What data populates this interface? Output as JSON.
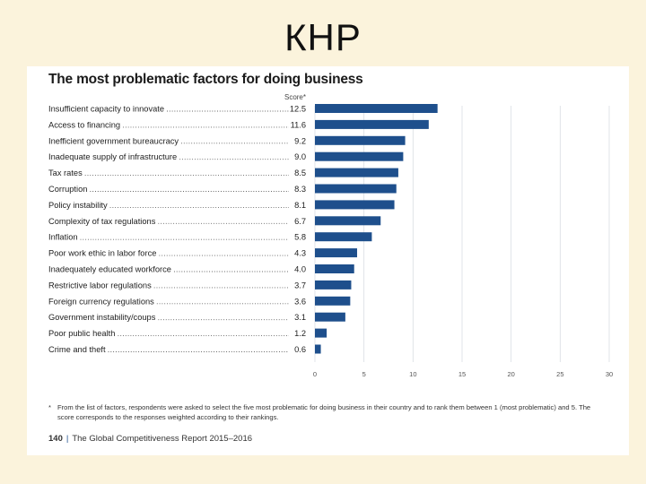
{
  "slide": {
    "title": "КНР"
  },
  "chart_data": {
    "type": "bar",
    "orientation": "horizontal",
    "title": "The most problematic factors for doing business",
    "score_label": "Score*",
    "categories": [
      "Insufficient capacity to innovate",
      "Access to financing",
      "Inefficient government bureaucracy",
      "Inadequate supply of infrastructure",
      "Tax rates",
      "Corruption",
      "Policy instability",
      "Complexity of tax regulations",
      "Inflation",
      "Poor work ethic in labor force",
      "Inadequately educated workforce",
      "Restrictive labor regulations",
      "Foreign currency regulations",
      "Government instability/coups",
      "Poor public health",
      "Crime and theft"
    ],
    "values": [
      12.5,
      11.6,
      9.2,
      9.0,
      8.5,
      8.3,
      8.1,
      6.7,
      5.8,
      4.3,
      4.0,
      3.7,
      3.6,
      3.1,
      1.2,
      0.6
    ],
    "value_labels": [
      "12.5",
      "11.6",
      "9.2",
      "9.0",
      "8.5",
      "8.3",
      "8.1",
      "6.7",
      "5.8",
      "4.3",
      "4.0",
      "3.7",
      "3.6",
      "3.1",
      "1.2",
      "0.6"
    ],
    "xlim": [
      0,
      30
    ],
    "xticks": [
      0,
      5,
      10,
      15,
      20,
      25,
      30
    ],
    "bar_color": "#1e4f8c",
    "grid_color": "#d9dde3"
  },
  "footnote": {
    "mark": "*",
    "text": "From the list of factors, respondents were asked to select the five most problematic for doing business in their country and to rank them between 1 (most problematic) and 5. The score corresponds to the responses weighted according to their rankings."
  },
  "footer": {
    "page": "140",
    "separator": "|",
    "source": "The Global Competitiveness Report 2015–2016"
  }
}
